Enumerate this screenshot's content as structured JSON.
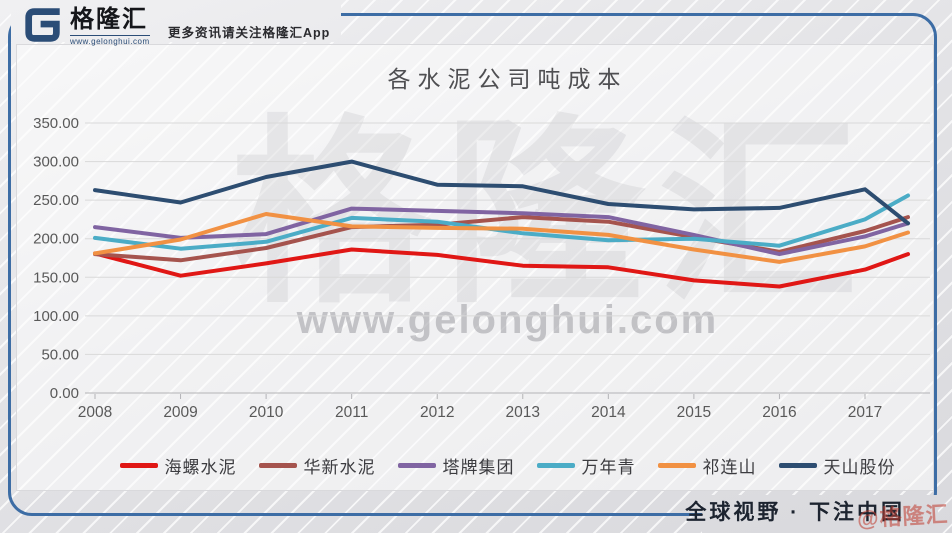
{
  "header": {
    "logo_text": "格隆汇",
    "logo_site": "www.gelonghui.com",
    "tagline": "更多资讯请关注格隆汇App"
  },
  "watermarks": {
    "big": "格隆汇",
    "site": "www.gelonghui.com",
    "corner": "@格隆汇"
  },
  "footer": {
    "slogan": "全球视野 · 下注中国"
  },
  "colors": {
    "frame": "#3d6da5",
    "title_text": "#4f4f52",
    "axis_text": "#595959",
    "grid_line": "#d9d9d9",
    "axis_line": "#b3b3b6"
  },
  "chart_data": {
    "type": "line",
    "title": "各水泥公司吨成本",
    "categories": [
      "2008",
      "2009",
      "2010",
      "2011",
      "2012",
      "2013",
      "2014",
      "2015",
      "2016",
      "2017",
      ""
    ],
    "series": [
      {
        "name": "海螺水泥",
        "color": "#e01715",
        "values": [
          181,
          152,
          168,
          186,
          179,
          165,
          163,
          146,
          138,
          160,
          180
        ]
      },
      {
        "name": "华新水泥",
        "color": "#a5544e",
        "values": [
          180,
          172,
          188,
          215,
          218,
          228,
          222,
          202,
          183,
          210,
          228
        ]
      },
      {
        "name": "塔牌集团",
        "color": "#8064a2",
        "values": [
          215,
          201,
          206,
          239,
          236,
          233,
          228,
          205,
          180,
          203,
          220
        ]
      },
      {
        "name": "万年青",
        "color": "#4bacc6",
        "values": [
          201,
          187,
          196,
          227,
          222,
          207,
          198,
          200,
          191,
          225,
          256
        ]
      },
      {
        "name": "祁连山",
        "color": "#f19143",
        "values": [
          181,
          199,
          232,
          216,
          214,
          213,
          205,
          186,
          170,
          190,
          208
        ]
      },
      {
        "name": "天山股份",
        "color": "#2d4d71",
        "values": [
          263,
          247,
          280,
          300,
          270,
          268,
          245,
          238,
          240,
          264,
          220
        ]
      }
    ],
    "ylim": [
      0,
      350
    ],
    "ytick_labels": [
      "0.00",
      "50.00",
      "100.00",
      "150.00",
      "200.00",
      "250.00",
      "300.00",
      "350.00"
    ],
    "grid": true,
    "legend_position": "bottom"
  }
}
